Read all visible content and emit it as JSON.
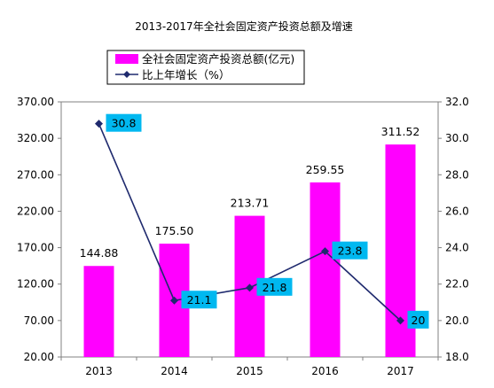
{
  "chart_data": {
    "type": "bar",
    "title": "2013-2017年全社会固定资产投资总额及增速",
    "categories": [
      "2013",
      "2014",
      "2015",
      "2016",
      "2017"
    ],
    "series": [
      {
        "name": "全社会固定资产投资总额(亿元)",
        "type": "bar",
        "axis": "left",
        "color": "#ff00ff",
        "values": [
          144.88,
          175.5,
          213.71,
          259.55,
          311.52
        ],
        "labels": [
          "144.88",
          "175.50",
          "213.71",
          "259.55",
          "311.52"
        ]
      },
      {
        "name": "比上年增长（%）",
        "type": "line",
        "axis": "right",
        "color": "#1f2a6e",
        "marker": "diamond",
        "label_bg": "#00b8f0",
        "values": [
          30.8,
          21.1,
          21.8,
          23.8,
          20.0
        ],
        "labels": [
          "30.8",
          "21.1",
          "21.8",
          "23.8",
          "20"
        ]
      }
    ],
    "ylim_left": [
      20,
      370
    ],
    "yticks_left": [
      "20.00",
      "70.00",
      "120.00",
      "170.00",
      "220.00",
      "270.00",
      "320.00",
      "370.00"
    ],
    "ylim_right": [
      18,
      32
    ],
    "yticks_right": [
      "18.0",
      "20.0",
      "22.0",
      "24.0",
      "26.0",
      "28.0",
      "30.0",
      "32.0"
    ],
    "grid": false,
    "legend": "top"
  }
}
